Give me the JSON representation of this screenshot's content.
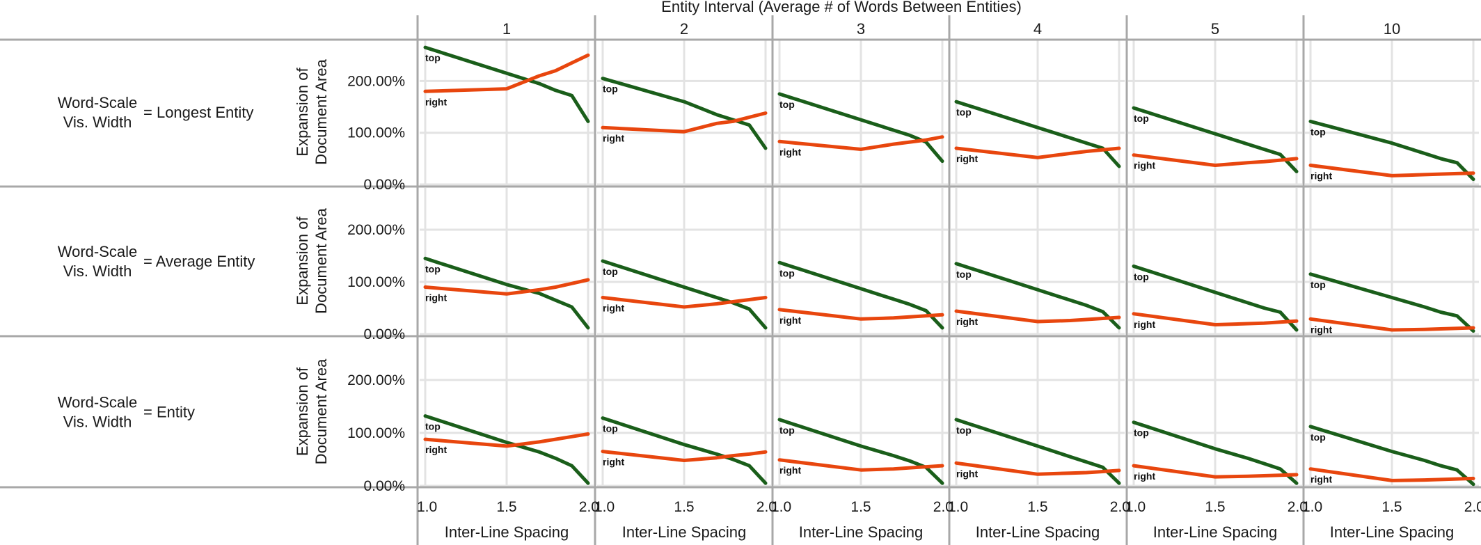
{
  "chart_data": {
    "type": "line",
    "title": "Entity Interval (Average # of Words Between Entities)",
    "xlabel": "Inter-Line Spacing",
    "ylabel": "Expansion of Document Area",
    "xlim": [
      1.0,
      2.0
    ],
    "x_ticks": [
      "1.0",
      "1.5",
      "2.0"
    ],
    "ylim": [
      0,
      2.8
    ],
    "y_ticks": [
      "0.00%",
      "100.00%",
      "200.00%"
    ],
    "grid": true,
    "columns": [
      "1",
      "2",
      "3",
      "4",
      "5",
      "10"
    ],
    "rows": [
      {
        "left": "Word-Scale Vis. Width",
        "right": "= Longest Entity"
      },
      {
        "left": "Word-Scale Vis. Width",
        "right": "= Average Entity"
      },
      {
        "left": "Word-Scale Vis. Width",
        "right": "= Entity"
      }
    ],
    "series_names": [
      "top",
      "right"
    ],
    "colors": {
      "top": "#1a5e1a",
      "right": "#e8460e"
    },
    "x": [
      1.0,
      1.5,
      1.7,
      1.8,
      1.9,
      2.0
    ],
    "panels": [
      [
        {
          "top": [
            2.65,
            2.15,
            1.95,
            1.82,
            1.72,
            1.22
          ],
          "right": [
            1.8,
            1.85,
            2.1,
            2.2,
            2.35,
            2.5
          ]
        },
        {
          "top": [
            2.05,
            1.6,
            1.35,
            1.25,
            1.15,
            0.7
          ],
          "right": [
            1.1,
            1.02,
            1.18,
            1.22,
            1.3,
            1.38
          ]
        },
        {
          "top": [
            1.75,
            1.25,
            1.05,
            0.95,
            0.82,
            0.45
          ],
          "right": [
            0.83,
            0.68,
            0.78,
            0.82,
            0.86,
            0.92
          ]
        },
        {
          "top": [
            1.6,
            1.1,
            0.9,
            0.8,
            0.7,
            0.35
          ],
          "right": [
            0.7,
            0.52,
            0.6,
            0.64,
            0.67,
            0.7
          ]
        },
        {
          "top": [
            1.48,
            0.98,
            0.78,
            0.68,
            0.58,
            0.25
          ],
          "right": [
            0.57,
            0.37,
            0.42,
            0.44,
            0.47,
            0.5
          ]
        },
        {
          "top": [
            1.22,
            0.8,
            0.6,
            0.5,
            0.42,
            0.1
          ],
          "right": [
            0.37,
            0.17,
            0.19,
            0.2,
            0.21,
            0.22
          ]
        }
      ],
      [
        {
          "top": [
            1.45,
            0.95,
            0.78,
            0.65,
            0.52,
            0.12
          ],
          "right": [
            0.9,
            0.77,
            0.85,
            0.9,
            0.97,
            1.04
          ]
        },
        {
          "top": [
            1.4,
            0.9,
            0.7,
            0.6,
            0.48,
            0.12
          ],
          "right": [
            0.7,
            0.52,
            0.58,
            0.62,
            0.66,
            0.7
          ]
        },
        {
          "top": [
            1.37,
            0.87,
            0.67,
            0.57,
            0.45,
            0.12
          ],
          "right": [
            0.47,
            0.29,
            0.31,
            0.33,
            0.35,
            0.37
          ]
        },
        {
          "top": [
            1.35,
            0.85,
            0.65,
            0.55,
            0.43,
            0.12
          ],
          "right": [
            0.44,
            0.24,
            0.26,
            0.28,
            0.3,
            0.32
          ]
        },
        {
          "top": [
            1.3,
            0.8,
            0.6,
            0.5,
            0.42,
            0.08
          ],
          "right": [
            0.39,
            0.18,
            0.2,
            0.21,
            0.23,
            0.25
          ]
        },
        {
          "top": [
            1.15,
            0.7,
            0.52,
            0.42,
            0.35,
            0.06
          ],
          "right": [
            0.29,
            0.08,
            0.09,
            0.1,
            0.11,
            0.12
          ]
        }
      ],
      [
        {
          "top": [
            1.32,
            0.82,
            0.64,
            0.52,
            0.38,
            0.05
          ],
          "right": [
            0.88,
            0.75,
            0.83,
            0.88,
            0.93,
            0.98
          ]
        },
        {
          "top": [
            1.28,
            0.78,
            0.6,
            0.5,
            0.38,
            0.05
          ],
          "right": [
            0.65,
            0.48,
            0.53,
            0.57,
            0.6,
            0.64
          ]
        },
        {
          "top": [
            1.25,
            0.75,
            0.57,
            0.47,
            0.35,
            0.05
          ],
          "right": [
            0.49,
            0.3,
            0.32,
            0.34,
            0.36,
            0.38
          ]
        },
        {
          "top": [
            1.25,
            0.75,
            0.55,
            0.45,
            0.35,
            0.05
          ],
          "right": [
            0.43,
            0.22,
            0.24,
            0.25,
            0.27,
            0.29
          ]
        },
        {
          "top": [
            1.2,
            0.7,
            0.52,
            0.42,
            0.32,
            0.05
          ],
          "right": [
            0.38,
            0.17,
            0.18,
            0.19,
            0.2,
            0.21
          ]
        },
        {
          "top": [
            1.12,
            0.65,
            0.48,
            0.38,
            0.3,
            0.03
          ],
          "right": [
            0.32,
            0.1,
            0.11,
            0.12,
            0.13,
            0.14
          ]
        }
      ]
    ]
  }
}
